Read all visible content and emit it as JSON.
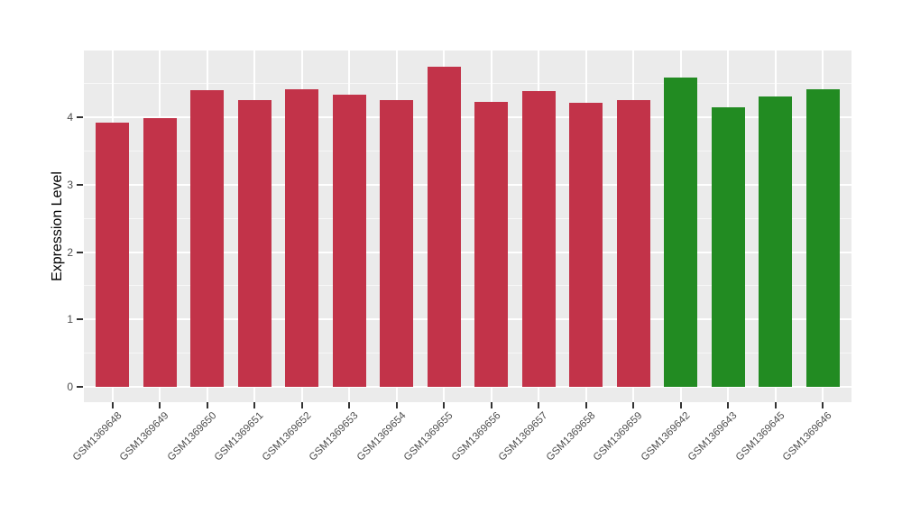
{
  "figure": {
    "background_color": "#FFFFFF"
  },
  "chart_data": {
    "type": "bar",
    "title": "",
    "xlabel": "",
    "ylabel": "Expression Level",
    "categories": [
      "GSM1369648",
      "GSM1369649",
      "GSM1369650",
      "GSM1369651",
      "GSM1369652",
      "GSM1369653",
      "GSM1369654",
      "GSM1369655",
      "GSM1369656",
      "GSM1369657",
      "GSM1369658",
      "GSM1369659",
      "GSM1369642",
      "GSM1369643",
      "GSM1369645",
      "GSM1369646"
    ],
    "values": [
      3.92,
      3.98,
      4.4,
      4.26,
      4.41,
      4.34,
      4.25,
      4.75,
      4.23,
      4.39,
      4.21,
      4.25,
      4.59,
      4.15,
      4.31,
      4.41
    ],
    "bar_colors": [
      "#C23349",
      "#C23349",
      "#C23349",
      "#C23349",
      "#C23349",
      "#C23349",
      "#C23349",
      "#C23349",
      "#C23349",
      "#C23349",
      "#C23349",
      "#C23349",
      "#228B22",
      "#228B22",
      "#228B22",
      "#228B22"
    ],
    "group_colors": {
      "group1": "#C23349",
      "group2": "#228B22"
    },
    "ylim": [
      0,
      4.99
    ],
    "yticks": [
      0,
      1,
      2,
      3,
      4
    ],
    "yticks_minor": [
      0.5,
      1.5,
      2.5,
      3.5,
      4.5
    ],
    "grid": "on",
    "legend": "none",
    "panel_background": "#EBEBEB",
    "gridline_color": "#FFFFFF",
    "tick_mark_color": "#333333",
    "tick_label_color": "#4D4D4D",
    "axis_title_color": "#000000",
    "x_label_rotation_deg": 45
  }
}
